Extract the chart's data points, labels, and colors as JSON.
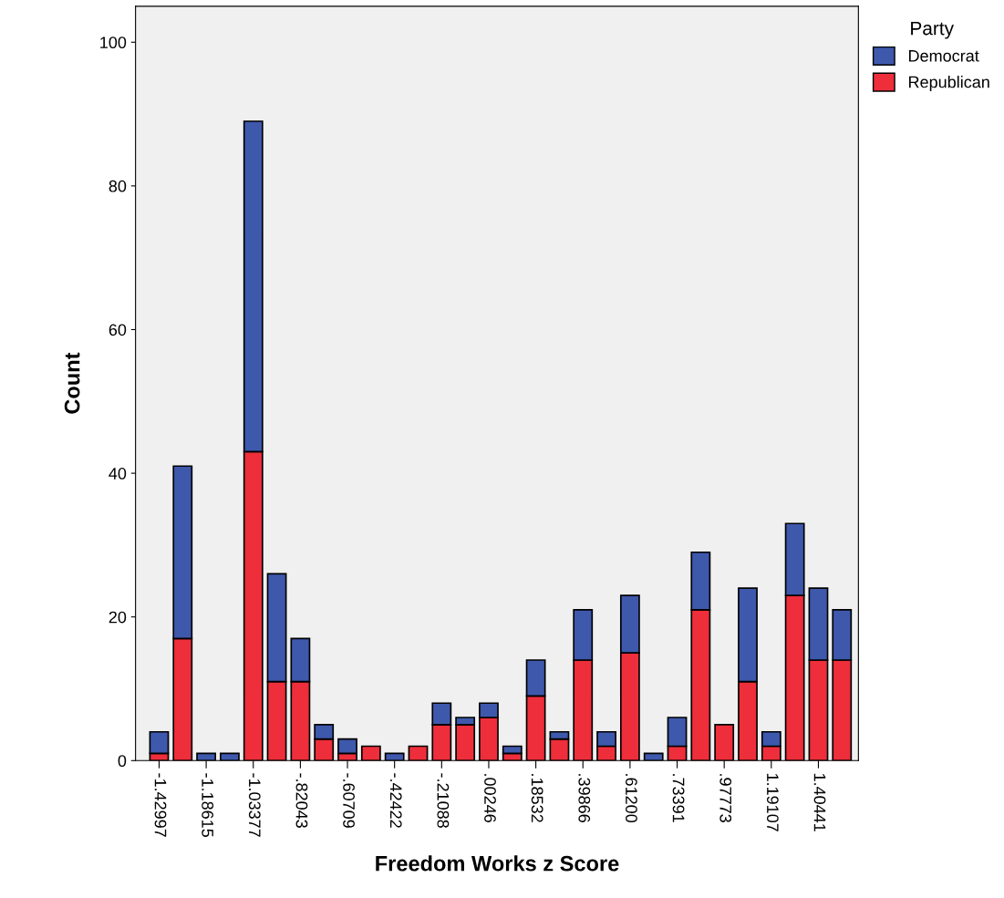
{
  "chart_data": {
    "type": "bar",
    "stacked": true,
    "xlabel": "Freedom Works z Score",
    "ylabel": "Count",
    "legend_title": "Party",
    "legend": "top right",
    "categories": [
      "-1.42997",
      null,
      "-1.18615",
      null,
      "-1.03377",
      null,
      "-.82043",
      null,
      "-.60709",
      null,
      "-.42422",
      null,
      "-.21088",
      null,
      ".00246",
      null,
      ".18532",
      null,
      ".39866",
      null,
      ".61200",
      null,
      ".73391",
      null,
      ".97773",
      null,
      "1.19107",
      null,
      "1.40441",
      null
    ],
    "series": [
      {
        "name": "Republican",
        "color": "#ee2e3a",
        "values": [
          1,
          17,
          0,
          0,
          43,
          11,
          11,
          3,
          1,
          2,
          0,
          2,
          5,
          5,
          6,
          1,
          9,
          3,
          14,
          2,
          15,
          0,
          2,
          21,
          5,
          11,
          2,
          23,
          14,
          14
        ]
      },
      {
        "name": "Democrat",
        "color": "#3e58ac",
        "values": [
          3,
          24,
          1,
          1,
          46,
          15,
          6,
          2,
          2,
          0,
          1,
          0,
          3,
          1,
          2,
          1,
          5,
          1,
          7,
          2,
          8,
          1,
          4,
          8,
          0,
          13,
          2,
          10,
          10,
          7
        ]
      }
    ],
    "ylim": [
      0,
      105
    ],
    "yticks": [
      0,
      20,
      40,
      60,
      80,
      100
    ],
    "grid": false
  }
}
